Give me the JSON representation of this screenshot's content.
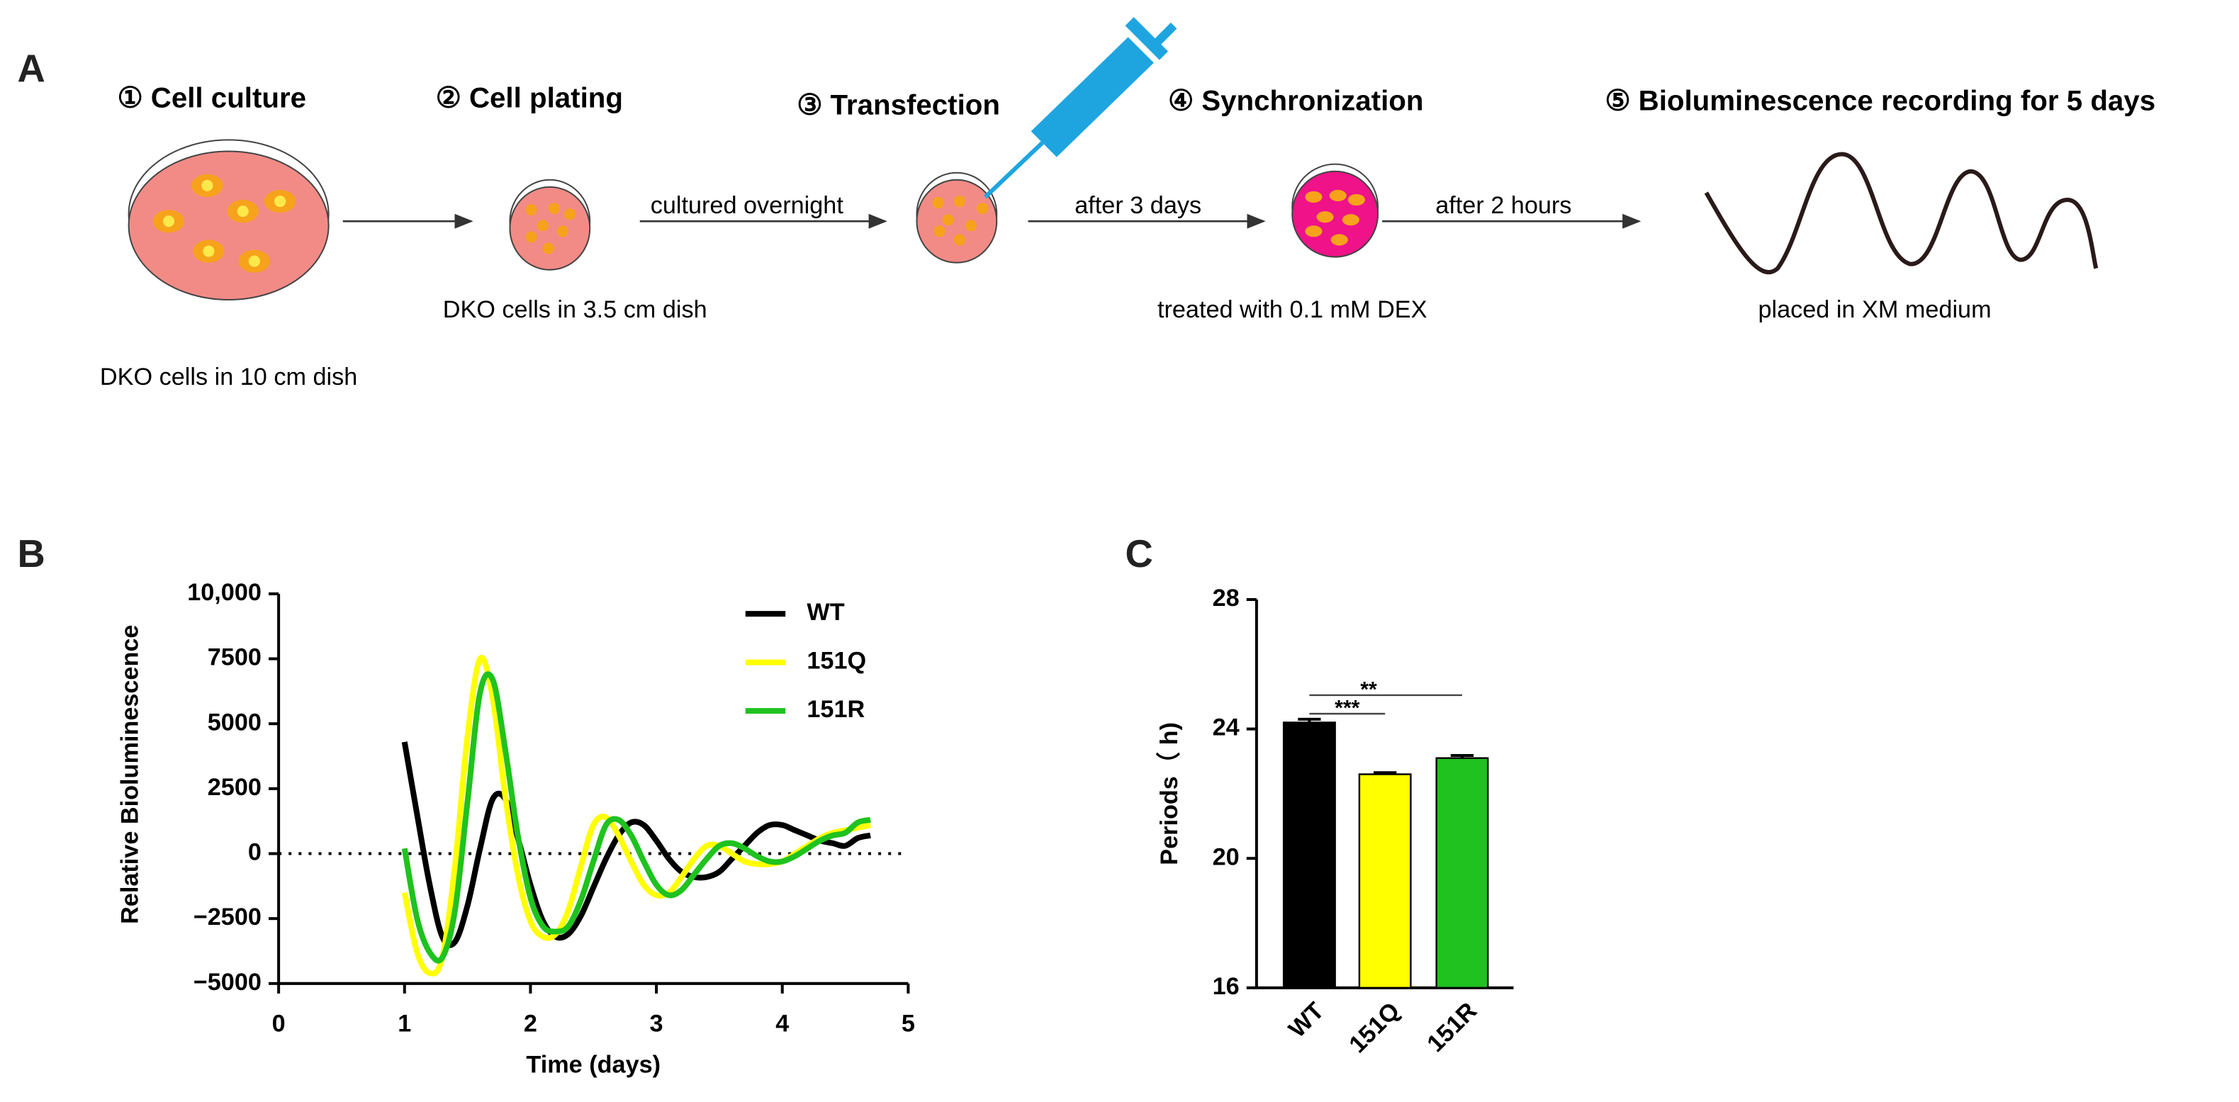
{
  "panel_labels": [
    "A",
    "B",
    "C"
  ],
  "workflow": {
    "steps": [
      {
        "title": "① Cell culture",
        "caption": "DKO cells in 10 cm dish"
      },
      {
        "title": "② Cell plating",
        "caption": "DKO cells in 3.5 cm dish"
      },
      {
        "title": "③ Transfection"
      },
      {
        "title": "④ Synchronization",
        "caption": "treated with 0.1 mM DEX"
      },
      {
        "title": "⑤ Bioluminescence recording for 5 days",
        "caption": "placed in XM medium"
      }
    ],
    "transitions": [
      "cultured overnight",
      "after 3 days",
      "after 2 hours"
    ]
  },
  "chart_data": [
    {
      "type": "line",
      "xlabel": "Time (days)",
      "ylabel": "Relative Bioluminescence",
      "x": [
        1.0,
        1.1,
        1.2,
        1.3,
        1.4,
        1.5,
        1.6,
        1.7,
        1.8,
        1.9,
        2.0,
        2.1,
        2.2,
        2.3,
        2.4,
        2.5,
        2.6,
        2.7,
        2.8,
        2.9,
        3.0,
        3.1,
        3.2,
        3.3,
        3.4,
        3.5,
        3.6,
        3.7,
        3.8,
        3.9,
        4.0,
        4.1,
        4.2,
        4.3,
        4.4,
        4.5,
        4.6,
        4.7
      ],
      "series": [
        {
          "name": "WT",
          "color": "#000000",
          "values": [
            4300,
            1500,
            -1200,
            -3200,
            -3400,
            -2000,
            200,
            2100,
            2100,
            600,
            -1200,
            -2600,
            -3200,
            -3100,
            -2400,
            -1300,
            -200,
            700,
            1200,
            1100,
            500,
            -200,
            -700,
            -900,
            -900,
            -700,
            -200,
            300,
            800,
            1100,
            1100,
            900,
            700,
            500,
            400,
            300,
            600,
            700
          ]
        },
        {
          "name": "151Q",
          "color": "#ffff00",
          "values": [
            -1500,
            -3800,
            -4600,
            -4000,
            -500,
            4500,
            7500,
            6000,
            2200,
            -800,
            -2600,
            -3200,
            -3100,
            -2200,
            -500,
            1100,
            1400,
            700,
            -300,
            -1200,
            -1600,
            -1500,
            -900,
            -200,
            300,
            300,
            0,
            -300,
            -400,
            -400,
            -300,
            0,
            300,
            600,
            800,
            900,
            1000,
            1100
          ]
        },
        {
          "name": "151R",
          "color": "#1fc21f",
          "values": [
            200,
            -2500,
            -3800,
            -4000,
            -2200,
            2000,
            6200,
            6700,
            4000,
            700,
            -1700,
            -2800,
            -3000,
            -2800,
            -1800,
            -300,
            1100,
            1300,
            700,
            -300,
            -1200,
            -1600,
            -1400,
            -800,
            -200,
            300,
            400,
            200,
            -100,
            -300,
            -300,
            -100,
            200,
            500,
            700,
            800,
            1200,
            1300
          ]
        }
      ],
      "xlim": [
        0,
        5
      ],
      "xticks": [
        0,
        1,
        2,
        3,
        4,
        5
      ],
      "ylim": [
        -5000,
        10000
      ],
      "yticks": [
        {
          "value": -5000,
          "label": "−5000"
        },
        {
          "value": -2500,
          "label": "−2500"
        },
        0,
        2500,
        5000,
        7500,
        {
          "value": 10000,
          "label": "10,000"
        }
      ],
      "reference_line": 0,
      "legend": "upper right"
    },
    {
      "type": "bar",
      "ylabel": "Periods（ h)",
      "categories": [
        "WT",
        "151Q",
        "151R"
      ],
      "values": [
        24.2,
        22.6,
        23.1
      ],
      "errors": [
        0.1,
        0.05,
        0.08
      ],
      "colors": [
        "#000000",
        "#ffff00",
        "#1fc21f"
      ],
      "ylim": [
        16,
        28
      ],
      "yticks": [
        16,
        20,
        24,
        28
      ],
      "annotations": [
        {
          "text": "***",
          "between": [
            "WT",
            "151Q"
          ]
        },
        {
          "text": "**",
          "between": [
            "WT",
            "151R"
          ]
        }
      ]
    }
  ]
}
